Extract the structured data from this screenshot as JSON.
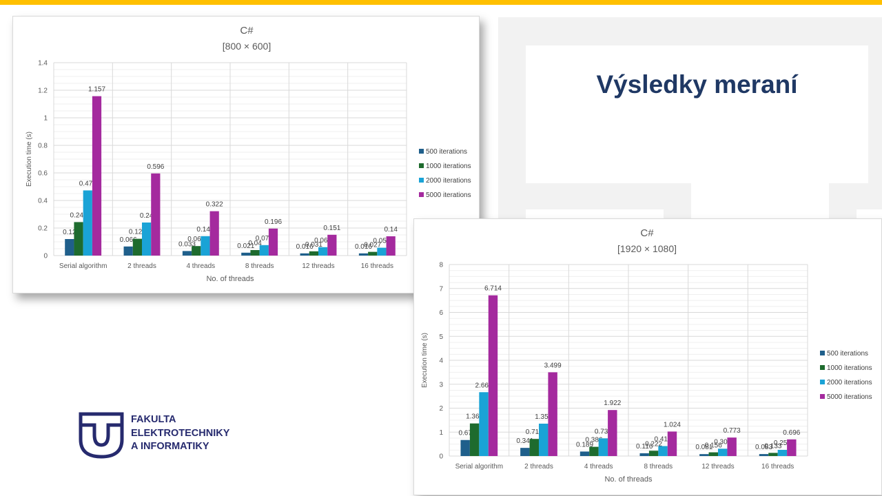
{
  "slide_title": "Výsledky meraní",
  "logo": {
    "lines": [
      "FAKULTA",
      "ELEKTROTECHNIKY",
      "A INFORMATIKY"
    ]
  },
  "colors": {
    "accent_bar": "#ffc000",
    "title": "#1f3864",
    "logo": "#262a6e"
  },
  "chart_data": [
    {
      "type": "bar",
      "title": "C#",
      "subtitle": "[800 × 600]",
      "xlabel": "No. of threads",
      "ylabel": "Execution time (s)",
      "ylim": [
        0,
        1.4
      ],
      "yticks": [
        "0",
        "0.2",
        "0.4",
        "0.6",
        "0.8",
        "1",
        "1.2",
        "1.4"
      ],
      "grid": true,
      "legend_position": "right",
      "categories": [
        "Serial algorithm",
        "2 threads",
        "4 threads",
        "8 threads",
        "12 threads",
        "16 threads"
      ],
      "series": [
        {
          "name": "500 iterations",
          "color": "#1f5f8b",
          "values": [
            0.12,
            0.066,
            0.033,
            0.021,
            0.016,
            0.016
          ]
        },
        {
          "name": "1000 iterations",
          "color": "#1e6b2e",
          "values": [
            0.243,
            0.122,
            0.069,
            0.04,
            0.031,
            0.027
          ]
        },
        {
          "name": "2000 iterations",
          "color": "#1aa3d6",
          "values": [
            0.473,
            0.24,
            0.141,
            0.076,
            0.061,
            0.057
          ]
        },
        {
          "name": "5000 iterations",
          "color": "#a42a9e",
          "values": [
            1.157,
            0.596,
            0.322,
            0.196,
            0.151,
            0.14
          ]
        }
      ]
    },
    {
      "type": "bar",
      "title": "C#",
      "subtitle": "[1920 × 1080]",
      "xlabel": "No. of threads",
      "ylabel": "Execution time (s)",
      "ylim": [
        0,
        8
      ],
      "yticks": [
        "0",
        "1",
        "2",
        "3",
        "4",
        "5",
        "6",
        "7",
        "8"
      ],
      "grid": true,
      "legend_position": "right",
      "categories": [
        "Serial algorithm",
        "2 threads",
        "4 threads",
        "8 threads",
        "12 threads",
        "16 threads"
      ],
      "series": [
        {
          "name": "500 iterations",
          "color": "#1f5f8b",
          "values": [
            0.67,
            0.341,
            0.189,
            0.116,
            0.081,
            0.083
          ]
        },
        {
          "name": "1000 iterations",
          "color": "#1e6b2e",
          "values": [
            1.362,
            0.714,
            0.386,
            0.222,
            0.156,
            0.133
          ]
        },
        {
          "name": "2000 iterations",
          "color": "#1aa3d6",
          "values": [
            2.668,
            1.353,
            0.739,
            0.417,
            0.306,
            0.259
          ]
        },
        {
          "name": "5000 iterations",
          "color": "#a42a9e",
          "values": [
            6.714,
            3.499,
            1.922,
            1.024,
            0.773,
            0.696
          ]
        }
      ]
    }
  ]
}
